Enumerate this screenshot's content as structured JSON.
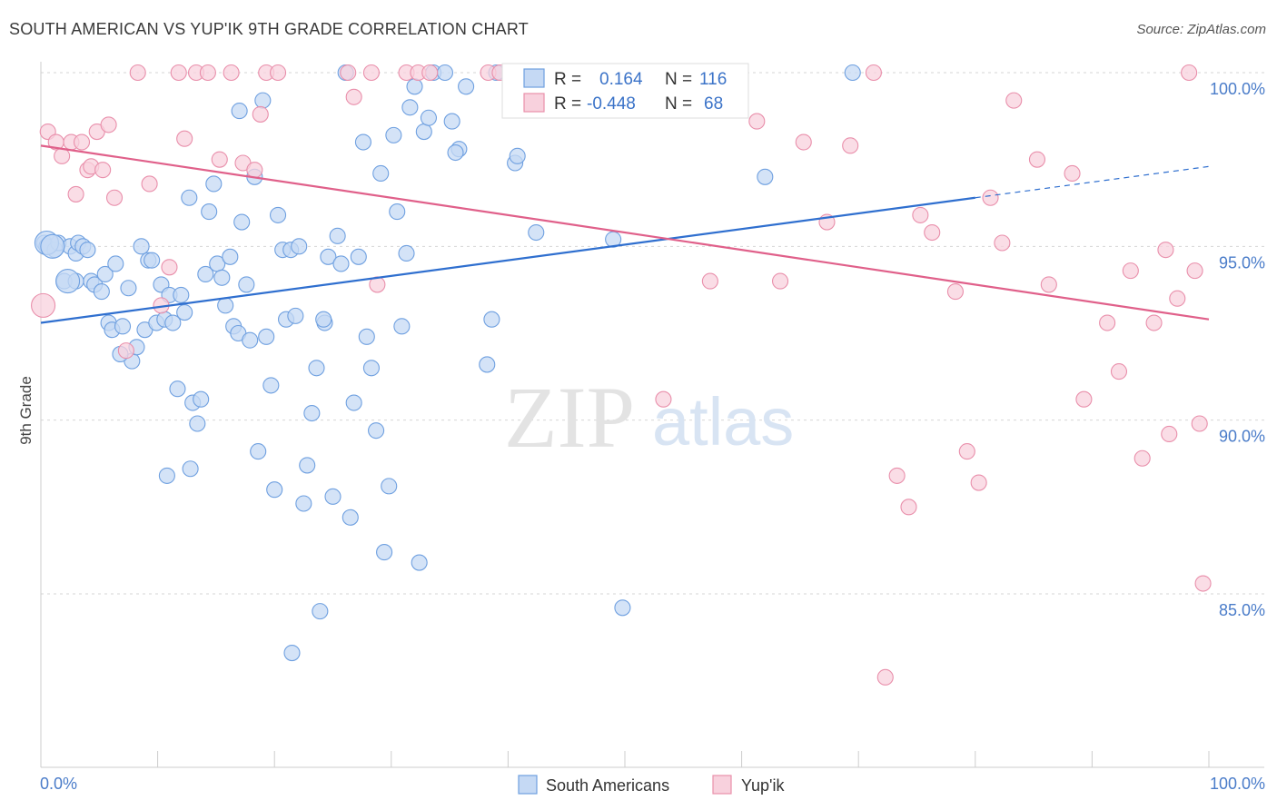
{
  "title": "SOUTH AMERICAN VS YUP'IK 9TH GRADE CORRELATION CHART",
  "source": "Source: ZipAtlas.com",
  "watermark": {
    "zip": "ZIP",
    "atlas": "atlas"
  },
  "chart_data": {
    "type": "scatter",
    "ylabel": "9th Grade",
    "x_tick_labels": [
      "0.0%",
      "100.0%"
    ],
    "y_tick_labels": [
      "100.0%",
      "95.0%",
      "90.0%",
      "85.0%"
    ],
    "xlim": [
      0,
      100
    ],
    "ylim": [
      80.5,
      100.8
    ],
    "y_ticks": [
      100,
      95,
      90,
      85
    ],
    "grid": true,
    "legend_position": "top-center",
    "legend": {
      "r_label": "R =",
      "n_label": "N =",
      "rows": [
        {
          "r": "0.164",
          "n": "116"
        },
        {
          "r": "-0.448",
          "n": "68"
        }
      ]
    },
    "series": [
      {
        "name": "South Americans",
        "color": "#6fa0e0",
        "fill": "#c5d9f4",
        "trend_color": "#2f6fcf",
        "trend": {
          "x0": 0,
          "y0": 92.8,
          "x1": 80,
          "y1": 96.4,
          "dash_to_x": 100,
          "dash_to_y": 97.3
        },
        "points": [
          [
            0.3,
            95.1
          ],
          [
            0.5,
            95.0
          ],
          [
            1.2,
            94.9
          ],
          [
            1.5,
            95.1
          ],
          [
            2.0,
            94.0
          ],
          [
            2.5,
            95.0
          ],
          [
            3.0,
            94.8
          ],
          [
            3.2,
            95.1
          ],
          [
            3.6,
            95.0
          ],
          [
            4.0,
            94.9
          ],
          [
            4.3,
            94.0
          ],
          [
            4.6,
            93.9
          ],
          [
            5.2,
            93.7
          ],
          [
            5.5,
            94.2
          ],
          [
            5.8,
            92.8
          ],
          [
            6.1,
            92.6
          ],
          [
            6.4,
            94.5
          ],
          [
            7.0,
            92.7
          ],
          [
            7.5,
            93.8
          ],
          [
            7.8,
            91.7
          ],
          [
            8.2,
            92.1
          ],
          [
            8.6,
            95.0
          ],
          [
            8.9,
            92.6
          ],
          [
            9.2,
            94.6
          ],
          [
            9.5,
            94.6
          ],
          [
            9.9,
            92.8
          ],
          [
            10.3,
            93.9
          ],
          [
            10.6,
            92.9
          ],
          [
            11.0,
            93.6
          ],
          [
            11.3,
            92.8
          ],
          [
            11.7,
            90.9
          ],
          [
            12.0,
            93.6
          ],
          [
            12.3,
            93.1
          ],
          [
            12.7,
            96.4
          ],
          [
            13.0,
            90.5
          ],
          [
            13.4,
            89.9
          ],
          [
            13.7,
            90.6
          ],
          [
            14.1,
            94.2
          ],
          [
            14.4,
            96.0
          ],
          [
            14.8,
            96.8
          ],
          [
            15.1,
            94.5
          ],
          [
            15.5,
            94.1
          ],
          [
            15.8,
            93.3
          ],
          [
            16.2,
            94.7
          ],
          [
            16.5,
            92.7
          ],
          [
            16.9,
            92.5
          ],
          [
            17.2,
            95.7
          ],
          [
            17.6,
            93.9
          ],
          [
            17.9,
            92.3
          ],
          [
            18.3,
            97.0
          ],
          [
            18.6,
            89.1
          ],
          [
            19.0,
            99.2
          ],
          [
            19.3,
            92.4
          ],
          [
            19.7,
            91.0
          ],
          [
            20.0,
            88.0
          ],
          [
            20.3,
            95.9
          ],
          [
            20.7,
            94.9
          ],
          [
            21.0,
            92.9
          ],
          [
            21.4,
            94.9
          ],
          [
            21.8,
            93.0
          ],
          [
            22.1,
            95.0
          ],
          [
            22.5,
            87.6
          ],
          [
            22.8,
            88.7
          ],
          [
            23.2,
            90.2
          ],
          [
            23.6,
            91.5
          ],
          [
            23.9,
            84.5
          ],
          [
            24.3,
            92.8
          ],
          [
            24.6,
            94.7
          ],
          [
            25.0,
            87.8
          ],
          [
            25.4,
            95.3
          ],
          [
            25.7,
            94.5
          ],
          [
            26.1,
            100.0
          ],
          [
            26.5,
            87.2
          ],
          [
            26.8,
            90.5
          ],
          [
            27.2,
            94.7
          ],
          [
            27.6,
            98.0
          ],
          [
            27.9,
            92.4
          ],
          [
            28.3,
            91.5
          ],
          [
            28.7,
            89.7
          ],
          [
            29.1,
            97.1
          ],
          [
            29.4,
            86.2
          ],
          [
            29.8,
            88.1
          ],
          [
            30.2,
            98.2
          ],
          [
            30.5,
            96.0
          ],
          [
            30.9,
            92.7
          ],
          [
            31.3,
            94.8
          ],
          [
            31.6,
            99.0
          ],
          [
            32.0,
            99.6
          ],
          [
            32.4,
            85.9
          ],
          [
            32.8,
            98.3
          ],
          [
            33.2,
            98.7
          ],
          [
            33.6,
            100.0
          ],
          [
            34.6,
            100.0
          ],
          [
            35.2,
            98.6
          ],
          [
            35.8,
            97.8
          ],
          [
            36.4,
            99.6
          ],
          [
            38.2,
            91.6
          ],
          [
            38.6,
            92.9
          ],
          [
            39.0,
            100.0
          ],
          [
            40.2,
            99.8
          ],
          [
            40.6,
            97.4
          ],
          [
            40.8,
            97.6
          ],
          [
            42.2,
            100.0
          ],
          [
            42.4,
            95.4
          ],
          [
            49.0,
            95.2
          ],
          [
            49.8,
            84.6
          ],
          [
            62.0,
            97.0
          ],
          [
            69.5,
            100.0
          ],
          [
            21.5,
            83.3
          ],
          [
            17.0,
            98.9
          ],
          [
            12.8,
            88.6
          ],
          [
            10.8,
            88.4
          ],
          [
            6.8,
            91.9
          ],
          [
            3.0,
            94.0
          ],
          [
            24.2,
            92.9
          ],
          [
            35.5,
            97.7
          ]
        ],
        "large_points": [
          [
            0.5,
            95.1
          ],
          [
            1.0,
            95.0
          ],
          [
            2.3,
            94.0
          ]
        ]
      },
      {
        "name": "Yup'ik",
        "color": "#e98fab",
        "fill": "#f8d1dd",
        "trend_color": "#e0608a",
        "trend": {
          "x0": 0,
          "y0": 97.9,
          "x1": 100,
          "y1": 92.9
        },
        "points": [
          [
            0.6,
            98.3
          ],
          [
            1.3,
            98.0
          ],
          [
            1.8,
            97.6
          ],
          [
            2.6,
            98.0
          ],
          [
            3.0,
            96.5
          ],
          [
            3.5,
            98.0
          ],
          [
            4.0,
            97.2
          ],
          [
            4.3,
            97.3
          ],
          [
            4.8,
            98.3
          ],
          [
            5.3,
            97.2
          ],
          [
            5.8,
            98.5
          ],
          [
            6.3,
            96.4
          ],
          [
            7.3,
            92.0
          ],
          [
            8.3,
            100.0
          ],
          [
            9.3,
            96.8
          ],
          [
            10.3,
            93.3
          ],
          [
            11.0,
            94.4
          ],
          [
            11.8,
            100.0
          ],
          [
            12.3,
            98.1
          ],
          [
            13.3,
            100.0
          ],
          [
            14.3,
            100.0
          ],
          [
            15.3,
            97.5
          ],
          [
            16.3,
            100.0
          ],
          [
            17.3,
            97.4
          ],
          [
            18.3,
            97.2
          ],
          [
            18.8,
            98.8
          ],
          [
            19.3,
            100.0
          ],
          [
            20.3,
            100.0
          ],
          [
            26.3,
            100.0
          ],
          [
            26.8,
            99.3
          ],
          [
            28.3,
            100.0
          ],
          [
            28.8,
            93.9
          ],
          [
            31.3,
            100.0
          ],
          [
            32.3,
            100.0
          ],
          [
            33.3,
            100.0
          ],
          [
            38.3,
            100.0
          ],
          [
            39.3,
            100.0
          ],
          [
            44.3,
            100.0
          ],
          [
            44.8,
            100.0
          ],
          [
            53.3,
            90.6
          ],
          [
            55.3,
            100.0
          ],
          [
            57.3,
            94.0
          ],
          [
            59.3,
            100.0
          ],
          [
            61.3,
            98.6
          ],
          [
            63.3,
            94.0
          ],
          [
            65.3,
            98.0
          ],
          [
            67.3,
            95.7
          ],
          [
            69.3,
            97.9
          ],
          [
            71.3,
            100.0
          ],
          [
            72.3,
            82.6
          ],
          [
            73.3,
            88.4
          ],
          [
            74.3,
            87.5
          ],
          [
            75.3,
            95.9
          ],
          [
            76.3,
            95.4
          ],
          [
            78.3,
            93.7
          ],
          [
            79.3,
            89.1
          ],
          [
            80.3,
            88.2
          ],
          [
            81.3,
            96.4
          ],
          [
            82.3,
            95.1
          ],
          [
            83.3,
            99.2
          ],
          [
            85.3,
            97.5
          ],
          [
            86.3,
            93.9
          ],
          [
            88.3,
            97.1
          ],
          [
            89.3,
            90.6
          ],
          [
            91.3,
            92.8
          ],
          [
            92.3,
            91.4
          ],
          [
            93.3,
            94.3
          ],
          [
            94.3,
            88.9
          ],
          [
            95.3,
            92.8
          ],
          [
            96.3,
            94.9
          ],
          [
            96.6,
            89.6
          ],
          [
            97.3,
            93.5
          ],
          [
            98.3,
            100.0
          ],
          [
            98.8,
            94.3
          ],
          [
            99.2,
            89.9
          ],
          [
            99.5,
            85.3
          ]
        ],
        "large_points": [
          [
            0.2,
            93.3
          ]
        ]
      }
    ]
  },
  "bottom_legend": [
    "South Americans",
    "Yup'ik"
  ]
}
